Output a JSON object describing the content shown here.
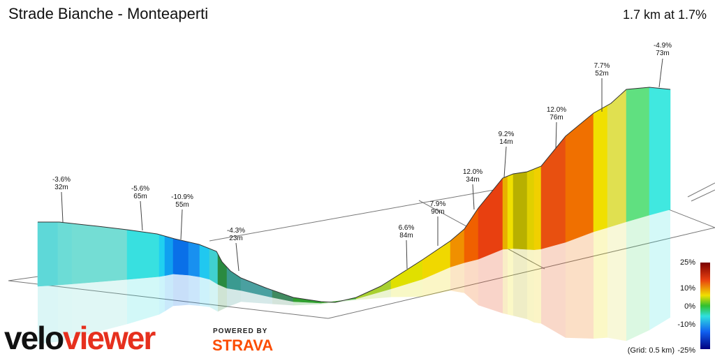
{
  "header": {
    "title": "Strade Bianche - Monteaperti",
    "summary": "1.7 km at 1.7%"
  },
  "annotations": [
    {
      "grade": "-3.6%",
      "length": "32m"
    },
    {
      "grade": "-5.6%",
      "length": "65m"
    },
    {
      "grade": "-10.9%",
      "length": "55m"
    },
    {
      "grade": "-4.3%",
      "length": "23m"
    },
    {
      "grade": "6.6%",
      "length": "84m"
    },
    {
      "grade": "7.9%",
      "length": "90m"
    },
    {
      "grade": "12.0%",
      "length": "34m"
    },
    {
      "grade": "9.2%",
      "length": "14m"
    },
    {
      "grade": "12.0%",
      "length": "76m"
    },
    {
      "grade": "7.7%",
      "length": "52m"
    },
    {
      "grade": "-4.9%",
      "length": "73m"
    }
  ],
  "legend": {
    "labels": [
      "25%",
      "10%",
      "0%",
      "-10%",
      "-25%"
    ],
    "grid_note": "(Grid: 0.5 km)"
  },
  "branding": {
    "logo_left": "velo",
    "logo_right": "viewer",
    "powered_by": "POWERED BY",
    "partner": "STRAVA"
  }
}
